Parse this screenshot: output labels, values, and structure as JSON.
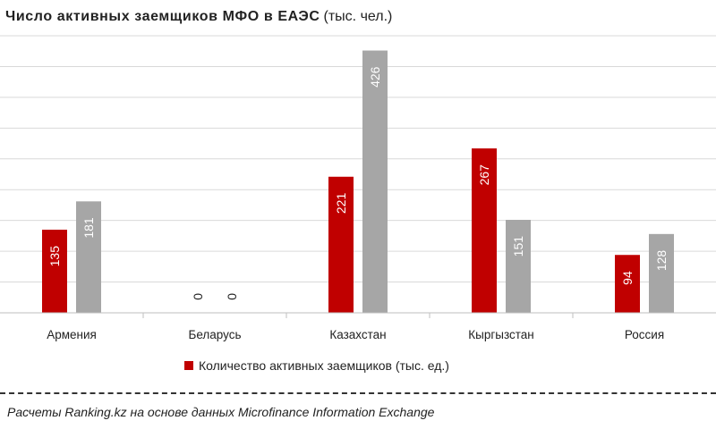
{
  "title": {
    "bold": "Число активных заемщиков МФО в ЕАЭС",
    "normal": "(тыс. чел.)"
  },
  "legend": {
    "label": "Количество активных заемщиков (тыс. ед.)"
  },
  "source": "Расчеты Ranking.kz на основе данных Microfinance Information Exchange",
  "colors": {
    "series1": "#c00000",
    "series2": "#a6a6a6",
    "grid": "#d9d9d9"
  },
  "chart_data": {
    "type": "bar",
    "categories": [
      "Армения",
      "Беларусь",
      "Казахстан",
      "Кыргызстан",
      "Россия"
    ],
    "series": [
      {
        "name": "Количество активных заемщиков (тыс. ед.)",
        "values": [
          135,
          0,
          221,
          267,
          94
        ]
      },
      {
        "values": [
          181,
          0,
          426,
          151,
          128
        ]
      }
    ],
    "ylim": [
      0,
      450
    ],
    "grid": true,
    "legend_position": "bottom"
  }
}
